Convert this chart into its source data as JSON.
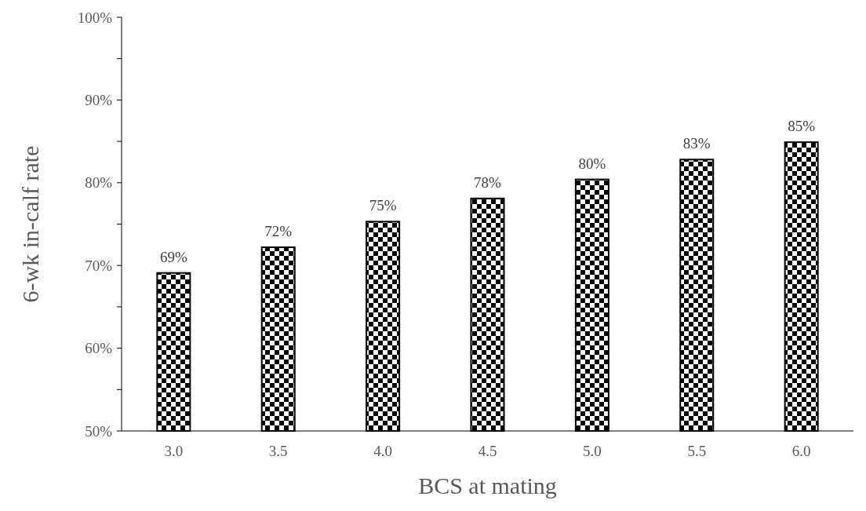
{
  "chart_data": {
    "type": "bar",
    "xlabel": "BCS at mating",
    "ylabel": "6-wk in-calf rate",
    "categories": [
      "3.0",
      "3.5",
      "4.0",
      "4.5",
      "5.0",
      "5.5",
      "6.0"
    ],
    "values": [
      69.1,
      72.2,
      75.3,
      78.1,
      80.4,
      82.8,
      84.9
    ],
    "value_labels": [
      "69%",
      "72%",
      "75%",
      "78%",
      "80%",
      "83%",
      "85%"
    ],
    "color": "#000000",
    "ylim": [
      50,
      100
    ],
    "yticks": [
      {
        "value": 50,
        "label": "50%"
      },
      {
        "value": 55,
        "label": null
      },
      {
        "value": 60,
        "label": "60%"
      },
      {
        "value": 65,
        "label": null
      },
      {
        "value": 70,
        "label": "70%"
      },
      {
        "value": 75,
        "label": null
      },
      {
        "value": 80,
        "label": "80%"
      },
      {
        "value": 85,
        "label": null
      },
      {
        "value": 90,
        "label": "90%"
      },
      {
        "value": 95,
        "label": null
      },
      {
        "value": 100,
        "label": "100%"
      }
    ],
    "grid": false
  }
}
